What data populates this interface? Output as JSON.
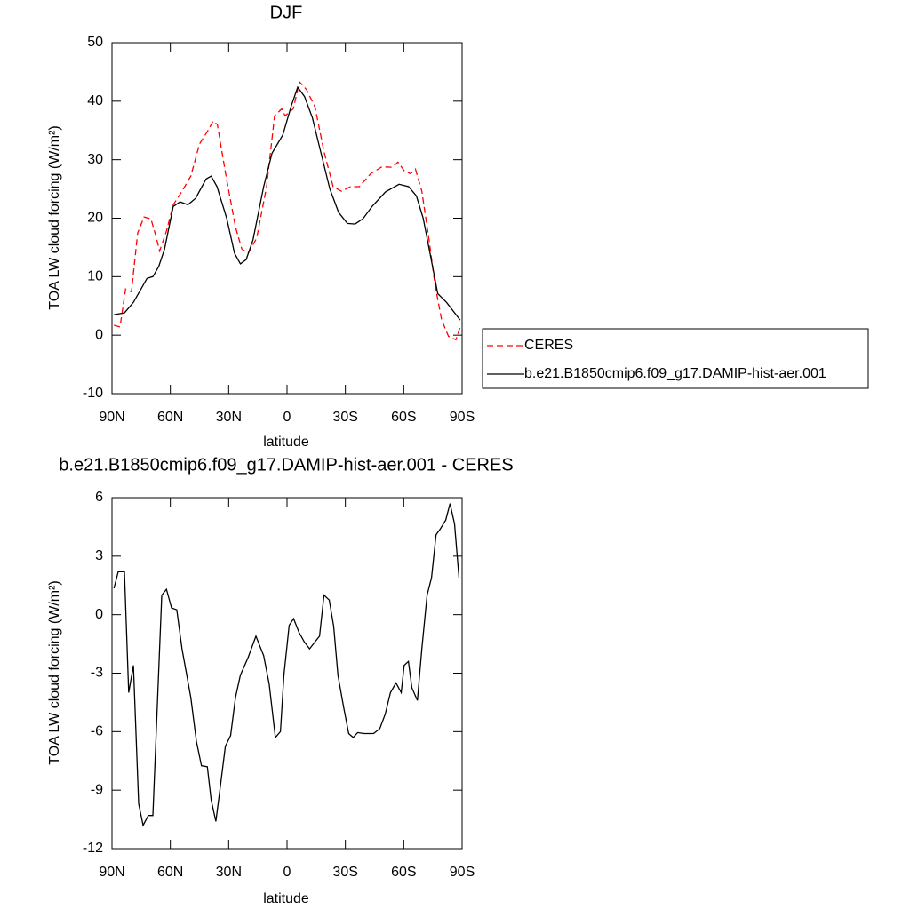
{
  "chart_data": [
    {
      "type": "line",
      "title": "DJF",
      "xlabel": "latitude",
      "ylabel": "TOA LW cloud forcing (W/m²)",
      "xlim": [
        90,
        -90
      ],
      "xticks": [
        {
          "value": 90,
          "label": "90N"
        },
        {
          "value": 60,
          "label": "60N"
        },
        {
          "value": 30,
          "label": "30N"
        },
        0,
        {
          "value": -30,
          "label": "30S"
        },
        {
          "value": -60,
          "label": "60S"
        },
        {
          "value": -90,
          "label": "90S"
        }
      ],
      "ylim": [
        -10,
        50
      ],
      "yticks": [
        -10,
        0,
        10,
        20,
        30,
        40,
        50
      ],
      "legend": "right",
      "series": [
        {
          "name": "CERES",
          "color": "#ff0000",
          "linestyle": "dashed",
          "x": [
            89,
            85.9,
            83,
            80,
            76.8,
            73.5,
            70,
            67.5,
            65.5,
            62,
            58.5,
            54,
            49.5,
            45,
            41,
            38,
            35.8,
            31.2,
            26.5,
            23.2,
            20,
            15.6,
            10.5,
            6.4,
            2.7,
            1,
            -3.2,
            -6.4,
            -10,
            -14.4,
            -19,
            -23.7,
            -28,
            -32.6,
            -37.2,
            -43,
            -48.8,
            -54.2,
            -57,
            -60.3,
            -63.5,
            -66,
            -69.3,
            -73,
            -76,
            -79.5,
            -83,
            -86.8,
            -89
          ],
          "values": [
            1.7,
            1.4,
            7.9,
            7.4,
            17.5,
            20.2,
            19.9,
            17,
            14.4,
            17.8,
            22.3,
            24.6,
            27.2,
            32.7,
            34.8,
            36.6,
            36,
            26.9,
            18.5,
            14.7,
            14,
            16.6,
            25.4,
            37.5,
            38.7,
            37.5,
            38.7,
            43.3,
            42,
            39,
            31.4,
            25.4,
            24.6,
            25.4,
            25.4,
            27.6,
            28.8,
            28.7,
            29.6,
            28.1,
            27.6,
            28.4,
            24.6,
            16.3,
            8.7,
            2.6,
            -0.2,
            -0.8,
            1.4
          ]
        },
        {
          "name": "b.e21.B1850cmip6.f09_g17.DAMIP-hist-aer.001",
          "color": "#000000",
          "linestyle": "solid",
          "x": [
            89,
            83.6,
            79,
            72,
            69,
            66,
            63,
            58.5,
            55,
            51,
            47,
            41.6,
            39,
            36,
            31,
            27,
            24,
            21,
            17.5,
            12,
            7.7,
            2.2,
            -2.3,
            -5.5,
            -9,
            -13,
            -17.5,
            -22,
            -26.5,
            -31,
            -35,
            -39,
            -43.7,
            -50.6,
            -57.6,
            -62.5,
            -66.5,
            -70,
            -73.5,
            -77.5,
            -82,
            -89
          ],
          "values": [
            3.5,
            3.8,
            5.6,
            9.7,
            10,
            11.7,
            14.7,
            22,
            22.8,
            22.3,
            23.4,
            26.7,
            27.2,
            25.4,
            20,
            14,
            12.2,
            12.9,
            16.3,
            25.4,
            31.1,
            34.2,
            39.3,
            42.4,
            40.8,
            37.2,
            31.1,
            25,
            21,
            19.1,
            19,
            19.9,
            22,
            24.5,
            25.8,
            25.4,
            23.8,
            20,
            14,
            7.1,
            5.6,
            2.6
          ]
        }
      ]
    },
    {
      "type": "line",
      "title": "b.e21.B1850cmip6.f09_g17.DAMIP-hist-aer.001 - CERES",
      "xlabel": "latitude",
      "ylabel": "TOA LW cloud forcing (W/m²)",
      "xlim": [
        90,
        -90
      ],
      "xticks": [
        {
          "value": 90,
          "label": "90N"
        },
        {
          "value": 60,
          "label": "60N"
        },
        {
          "value": 30,
          "label": "30N"
        },
        0,
        {
          "value": -30,
          "label": "30S"
        },
        {
          "value": -60,
          "label": "60S"
        },
        {
          "value": -90,
          "label": "90S"
        }
      ],
      "ylim": [
        -12,
        6
      ],
      "yticks": [
        -12,
        -9,
        -6,
        -3,
        0,
        3,
        6
      ],
      "series": [
        {
          "color": "#000000",
          "linestyle": "solid",
          "x": [
            89,
            86.8,
            83.6,
            81.4,
            79,
            76.3,
            74,
            71.3,
            69,
            64.4,
            62,
            59.4,
            56.7,
            54,
            49.5,
            46.6,
            44,
            41,
            39,
            36.6,
            34.4,
            31.7,
            29,
            26.5,
            24,
            20,
            16,
            12,
            9.2,
            6,
            3.4,
            1.6,
            -1.1,
            -3.4,
            -6.1,
            -8.9,
            -11.6,
            -16.7,
            -19,
            -21.7,
            -24,
            -26.2,
            -29,
            -31.7,
            -34,
            -36.3,
            -39.5,
            -42.2,
            -44.5,
            -47.7,
            -50.5,
            -53.2,
            -56,
            -58.7,
            -60.2,
            -62.4,
            -64.2,
            -67,
            -69.3,
            -72,
            -74.3,
            -76.6,
            -78.8,
            -81.6,
            -83.8,
            -86.1,
            -88.4
          ],
          "values": [
            1.35,
            2.2,
            2.2,
            -4,
            -2.6,
            -9.7,
            -10.8,
            -10.3,
            -10.3,
            1,
            1.3,
            0.35,
            0.25,
            -1.75,
            -4.25,
            -6.5,
            -7.75,
            -7.8,
            -9.5,
            -10.6,
            -8.9,
            -6.75,
            -6.2,
            -4.25,
            -3.1,
            -2.2,
            -1.1,
            -2.1,
            -3.55,
            -6.3,
            -6,
            -3.1,
            -0.55,
            -0.2,
            -0.9,
            -1.4,
            -1.75,
            -1.1,
            1,
            0.75,
            -0.6,
            -3.1,
            -4.7,
            -6.1,
            -6.3,
            -6.05,
            -6.1,
            -6.1,
            -6.1,
            -5.85,
            -5.1,
            -4,
            -3.5,
            -4,
            -2.6,
            -2.4,
            -3.75,
            -4.4,
            -1.75,
            1,
            1.9,
            4.1,
            4.4,
            4.85,
            5.7,
            4.65,
            1.9
          ]
        }
      ]
    }
  ]
}
